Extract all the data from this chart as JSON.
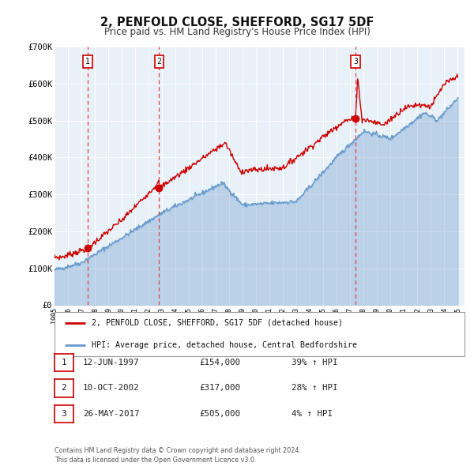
{
  "title": "2, PENFOLD CLOSE, SHEFFORD, SG17 5DF",
  "subtitle": "Price paid vs. HM Land Registry's House Price Index (HPI)",
  "title_fontsize": 10.5,
  "subtitle_fontsize": 8.5,
  "background_color": "#ffffff",
  "plot_bg_color": "#e8f0f8",
  "grid_color": "#ffffff",
  "sale_color": "#cc0000",
  "hpi_color": "#6699cc",
  "ylim": [
    0,
    700000
  ],
  "yticks": [
    0,
    100000,
    200000,
    300000,
    400000,
    500000,
    600000,
    700000
  ],
  "ytick_labels": [
    "£0",
    "£100K",
    "£200K",
    "£300K",
    "£400K",
    "£500K",
    "£600K",
    "£700K"
  ],
  "sales": [
    {
      "date_num": 1997.45,
      "price": 154000,
      "label": "1"
    },
    {
      "date_num": 2002.78,
      "price": 317000,
      "label": "2"
    },
    {
      "date_num": 2017.4,
      "price": 505000,
      "label": "3"
    }
  ],
  "vline_dates": [
    1997.45,
    2002.78,
    2017.4
  ],
  "transaction_rows": [
    {
      "num": "1",
      "date": "12-JUN-1997",
      "price": "£154,000",
      "hpi": "39% ↑ HPI"
    },
    {
      "num": "2",
      "date": "10-OCT-2002",
      "price": "£317,000",
      "hpi": "28% ↑ HPI"
    },
    {
      "num": "3",
      "date": "26-MAY-2017",
      "price": "£505,000",
      "hpi": "4% ↑ HPI"
    }
  ],
  "legend_sale_label": "2, PENFOLD CLOSE, SHEFFORD, SG17 5DF (detached house)",
  "legend_hpi_label": "HPI: Average price, detached house, Central Bedfordshire",
  "footer_line1": "Contains HM Land Registry data © Crown copyright and database right 2024.",
  "footer_line2": "This data is licensed under the Open Government Licence v3.0."
}
